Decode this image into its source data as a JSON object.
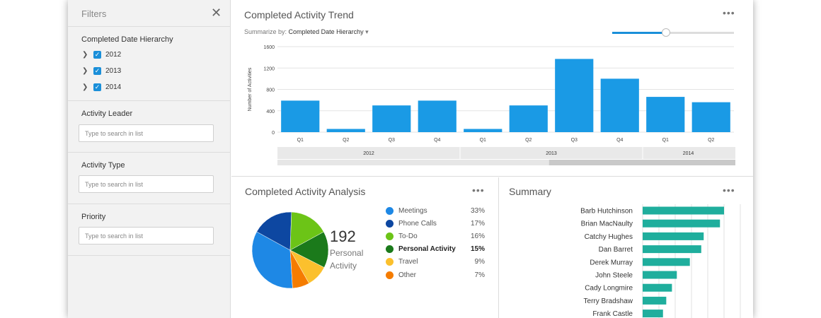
{
  "sidebar": {
    "title": "Filters",
    "date_section": {
      "label": "Completed Date Hierarchy",
      "years": [
        "2012",
        "2013",
        "2014"
      ]
    },
    "activity_leader": {
      "label": "Activity Leader",
      "placeholder": "Type to search in list"
    },
    "activity_type": {
      "label": "Activity Type",
      "placeholder": "Type to search in list"
    },
    "priority": {
      "label": "Priority",
      "placeholder": "Type to search in list"
    }
  },
  "trend": {
    "title": "Completed Activity Trend",
    "summarize_prefix": "Summarize by:",
    "summarize_value": "Completed Date Hierarchy",
    "slider_value": 0.44
  },
  "analysis": {
    "title": "Completed Activity Analysis",
    "kpi_value": "192",
    "kpi_label": "Personal Activity",
    "legend": [
      {
        "name": "Meetings",
        "pct": "33%",
        "color": "#1e88e5",
        "bold": false
      },
      {
        "name": "Phone Calls",
        "pct": "17%",
        "color": "#0d47a1",
        "bold": false
      },
      {
        "name": "To-Do",
        "pct": "16%",
        "color": "#6cc417",
        "bold": false
      },
      {
        "name": "Personal Activity",
        "pct": "15%",
        "color": "#1b7a1b",
        "bold": true
      },
      {
        "name": "Travel",
        "pct": "9%",
        "color": "#fbc02d",
        "bold": false
      },
      {
        "name": "Other",
        "pct": "7%",
        "color": "#f57c00",
        "bold": false
      }
    ]
  },
  "summary": {
    "title": "Summary"
  },
  "chart_data": [
    {
      "type": "bar",
      "title": "Completed Activity Trend",
      "ylabel": "Number of Activities",
      "ylim": [
        0,
        1600
      ],
      "yticks": [
        0,
        400,
        800,
        1200,
        1600
      ],
      "categories": [
        "Q1",
        "Q2",
        "Q3",
        "Q4",
        "Q1",
        "Q2",
        "Q3",
        "Q4",
        "Q1",
        "Q2"
      ],
      "groups": [
        {
          "label": "2012",
          "count": 4
        },
        {
          "label": "2013",
          "count": 4
        },
        {
          "label": "2014",
          "count": 2
        }
      ],
      "values": [
        590,
        60,
        500,
        590,
        60,
        500,
        1370,
        1000,
        660,
        560
      ],
      "color": "#1a9ae5",
      "grid": true
    },
    {
      "type": "pie",
      "title": "Completed Activity Analysis",
      "categories": [
        "Meetings",
        "Phone Calls",
        "To-Do",
        "Personal Activity",
        "Travel",
        "Other"
      ],
      "values": [
        33,
        17,
        16,
        15,
        9,
        7
      ],
      "colors": [
        "#1e88e5",
        "#0d47a1",
        "#6cc417",
        "#1b7a1b",
        "#fbc02d",
        "#f57c00"
      ]
    },
    {
      "type": "bar",
      "orientation": "horizontal",
      "title": "Summary",
      "categories": [
        "Barb Hutchinson",
        "Brian MacNaulty",
        "Catchy Hughes",
        "Dan Barret",
        "Derek Murray",
        "John Steele",
        "Cady Longmire",
        "Terry Bradshaw",
        "Frank Castle"
      ],
      "values": [
        100,
        95,
        75,
        72,
        58,
        42,
        36,
        29,
        25
      ],
      "xlim": [
        0,
        120
      ],
      "color": "#1fae9d",
      "grid": true
    }
  ]
}
